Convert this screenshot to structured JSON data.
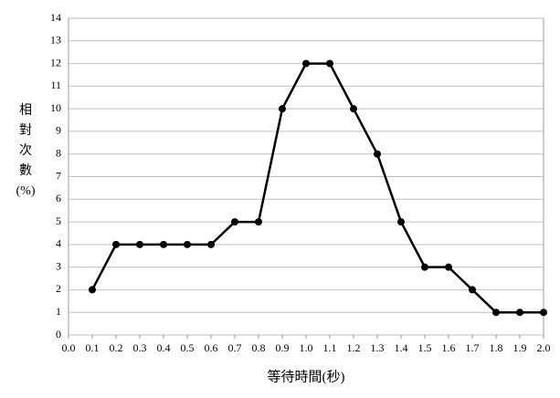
{
  "chart_data": {
    "type": "line",
    "xlabel": "等待時間(秒)",
    "ylabel": [
      "相",
      "對",
      "次",
      "數",
      "(%)"
    ],
    "x": [
      0.1,
      0.2,
      0.3,
      0.4,
      0.5,
      0.6,
      0.7,
      0.8,
      0.9,
      1.0,
      1.1,
      1.2,
      1.3,
      1.4,
      1.5,
      1.6,
      1.7,
      1.8,
      1.9,
      2.0
    ],
    "values": [
      2,
      4,
      4,
      4,
      4,
      4,
      5,
      5,
      10,
      12,
      12,
      10,
      8,
      5,
      3,
      3,
      2,
      1,
      1,
      1
    ],
    "color": "#000000",
    "xlim": [
      0,
      2
    ],
    "xticks": [
      {
        "value": 0,
        "label": "0.0"
      },
      0.1,
      0.2,
      0.3,
      0.4,
      0.5,
      0.6,
      0.7,
      0.8,
      0.9,
      {
        "value": 1,
        "label": "1.0"
      },
      1.1,
      1.2,
      1.3,
      1.4,
      1.5,
      1.6,
      1.7,
      1.8,
      1.9,
      {
        "value": 2,
        "label": "2.0"
      }
    ],
    "ylim": [
      0,
      14
    ],
    "yticks": [
      0,
      1,
      2,
      3,
      4,
      5,
      6,
      7,
      8,
      9,
      10,
      11,
      12,
      13,
      14
    ],
    "grid": true
  }
}
